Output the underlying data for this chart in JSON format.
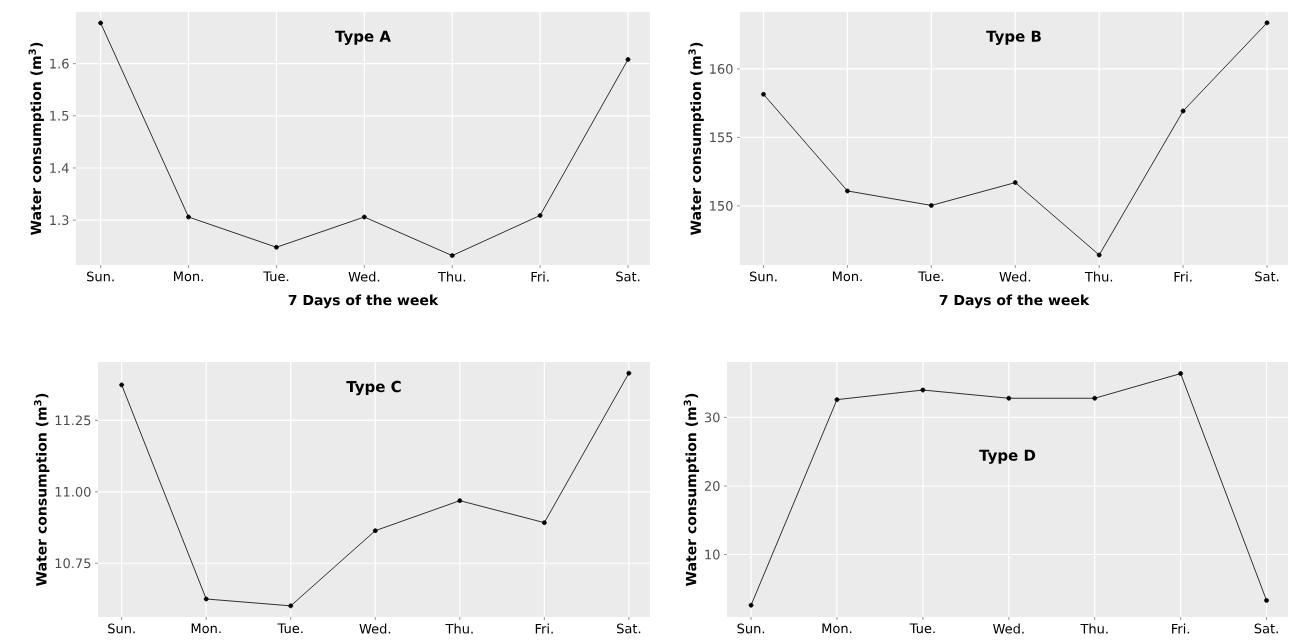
{
  "chart_data": [
    {
      "type": "line",
      "title": "Type A",
      "xlabel": "7 Days of the week",
      "ylabel": "Water consumption (m$^{3}$)",
      "categories": [
        "Sun.",
        "Mon.",
        "Tue.",
        "Wed.",
        "Thu.",
        "Fri.",
        "Sat."
      ],
      "values": [
        1.678,
        1.306,
        1.248,
        1.306,
        1.232,
        1.309,
        1.608
      ],
      "color": "#000000",
      "ylim": [
        1.214,
        1.699
      ],
      "yticks": [
        1.3,
        1.4,
        1.5,
        1.6
      ],
      "grid": true,
      "marker": "circle"
    },
    {
      "type": "line",
      "title": "Type B",
      "xlabel": "7 Days of the week",
      "ylabel": "Water consumption (m$^{3}$)",
      "categories": [
        "Sun.",
        "Mon.",
        "Tue.",
        "Wed.",
        "Thu.",
        "Fri.",
        "Sat."
      ],
      "values": [
        158.15,
        151.09,
        150.03,
        151.7,
        146.41,
        156.93,
        163.37
      ],
      "color": "#000000",
      "ylim": [
        145.68,
        164.16
      ],
      "yticks": [
        150,
        155,
        160
      ],
      "grid": true,
      "marker": "circle"
    },
    {
      "type": "line",
      "title": "Type C",
      "ylabel": "Water consumption (m$^{3}$)",
      "categories": [
        "Sun.",
        "Mon.",
        "Tue.",
        "Wed.",
        "Thu.",
        "Fri.",
        "Sat."
      ],
      "values": [
        11.374,
        10.625,
        10.601,
        10.864,
        10.969,
        10.892,
        11.415
      ],
      "color": "#000000",
      "ylim": [
        10.562,
        11.454
      ],
      "yticks": [
        {
          "value": 10.75,
          "label": "10.75"
        },
        {
          "value": 11.0,
          "label": "11.00"
        },
        {
          "value": 11.25,
          "label": "11.25"
        }
      ],
      "grid": true,
      "marker": "circle"
    },
    {
      "type": "line",
      "title": "Type D",
      "ylabel": "Water consumption (m$^{3}$)",
      "categories": [
        "Sun.",
        "Mon.",
        "Tue.",
        "Wed.",
        "Thu.",
        "Fri.",
        "Sat."
      ],
      "values": [
        2.6,
        32.6,
        34.0,
        32.8,
        32.8,
        36.4,
        3.3
      ],
      "color": "#000000",
      "ylim": [
        0.88,
        38.09
      ],
      "yticks": [
        10,
        20,
        30
      ],
      "grid": true,
      "marker": "circle"
    }
  ]
}
